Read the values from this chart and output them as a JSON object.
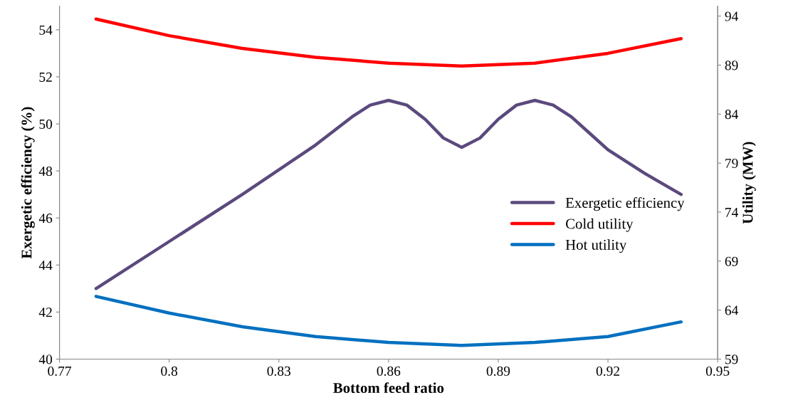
{
  "chart_data": {
    "type": "line",
    "xlabel": "Bottom feed ratio",
    "ylabel": "Exergetic efficiency (%)",
    "y2label": "Utility (MW)",
    "x": [
      0.78,
      0.8,
      0.82,
      0.84,
      0.86,
      0.88,
      0.9,
      0.92,
      0.94
    ],
    "series": [
      {
        "name": "Exergetic efficiency",
        "color": "#5b4a7d",
        "x": [
          0.78,
          0.8,
          0.82,
          0.84,
          0.845,
          0.85,
          0.855,
          0.86,
          0.865,
          0.87,
          0.875,
          0.88,
          0.885,
          0.89,
          0.895,
          0.9,
          0.905,
          0.91,
          0.915,
          0.92,
          0.93,
          0.94
        ],
        "values": [
          43,
          45,
          47,
          49.1,
          49.7,
          50.3,
          50.8,
          51,
          50.8,
          50.2,
          49.4,
          49,
          49.4,
          50.2,
          50.8,
          51,
          50.8,
          50.3,
          49.6,
          48.9,
          47.9,
          47
        ]
      },
      {
        "name": "Cold utility",
        "color": "#ff0000",
        "axis": "y2",
        "values": [
          93.7,
          92.0,
          90.7,
          89.8,
          89.2,
          88.9,
          89.2,
          90.2,
          91.7
        ]
      },
      {
        "name": "Hot utility",
        "color": "#0070c0",
        "axis": "y2",
        "values": [
          65.4,
          63.7,
          62.3,
          61.3,
          60.7,
          60.4,
          60.7,
          61.3,
          62.8
        ]
      }
    ],
    "xlim": [
      0.77,
      0.95
    ],
    "xticks": [
      0.77,
      0.8,
      0.83,
      0.86,
      0.89,
      0.92,
      0.95
    ],
    "ylim": [
      40,
      55
    ],
    "yticks": [
      40,
      42,
      44,
      46,
      48,
      50,
      52,
      54
    ],
    "y2lim": [
      59,
      95
    ],
    "y2ticks": [
      59,
      64,
      69,
      74,
      79,
      84,
      89,
      94
    ],
    "grid": false,
    "legend": "right",
    "marker": "none",
    "line_style": "solid"
  }
}
